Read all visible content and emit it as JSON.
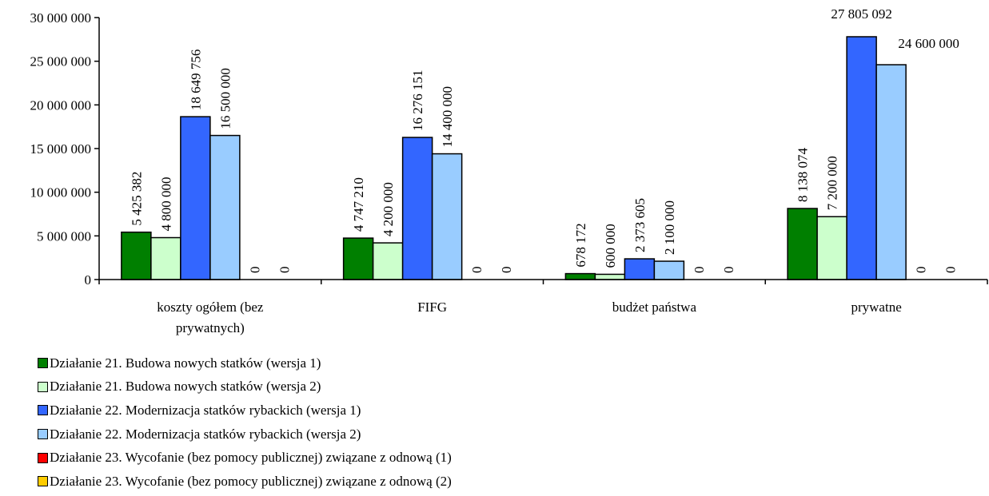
{
  "chart_data": {
    "type": "bar",
    "categories": [
      "koszty ogółem (bez prywatnych)",
      "FIFG",
      "budżet państwa",
      "prywatne"
    ],
    "category_lines": [
      [
        "koszty ogółem (bez",
        "prywatnych)"
      ],
      [
        "FIFG"
      ],
      [
        "budżet państwa"
      ],
      [
        "prywatne"
      ]
    ],
    "series": [
      {
        "name": "Działanie 21. Budowa nowych statków (wersja 1)",
        "color": "#007f00",
        "values": [
          5425382,
          4747210,
          678172,
          8138074
        ],
        "labels": [
          "5 425 382",
          "4 747 210",
          "678 172",
          "8 138 074"
        ]
      },
      {
        "name": "Działanie 21. Budowa nowych statków (wersja 2)",
        "color": "#ccffcc",
        "values": [
          4800000,
          4200000,
          600000,
          7200000
        ],
        "labels": [
          "4 800 000",
          "4 200 000",
          "600 000",
          "7 200 000"
        ]
      },
      {
        "name": "Działanie 22. Modernizacja statków rybackich (wersja 1)",
        "color": "#3366ff",
        "values": [
          18649756,
          16276151,
          2373605,
          27805092
        ],
        "labels": [
          "18 649 756",
          "16 276 151",
          "2 373 605",
          "27 805 092"
        ]
      },
      {
        "name": "Działanie 22. Modernizacja statków rybackich (wersja 2)",
        "color": "#99ccff",
        "values": [
          16500000,
          14400000,
          2100000,
          24600000
        ],
        "labels": [
          "16 500 000",
          "14 400 000",
          "2 100 000",
          "24 600 000"
        ]
      },
      {
        "name": "Działanie 23. Wycofanie (bez pomocy publicznej) związane z odnową (1)",
        "color": "#ff0000",
        "values": [
          0,
          0,
          0,
          0
        ],
        "labels": [
          "0",
          "0",
          "0",
          "0"
        ]
      },
      {
        "name": "Działanie 23. Wycofanie (bez pomocy publicznej) związane z odnową (2)",
        "color": "#ffcc00",
        "values": [
          0,
          0,
          0,
          0
        ],
        "labels": [
          "0",
          "0",
          "0",
          "0"
        ]
      }
    ],
    "ylim": [
      0,
      30000000
    ],
    "yticks": [
      0,
      5000000,
      10000000,
      15000000,
      20000000,
      25000000,
      30000000
    ],
    "ytick_labels": [
      "0",
      "5 000 000",
      "10 000 000",
      "15 000 000",
      "20 000 000",
      "25 000 000",
      "30 000 000"
    ],
    "title": "",
    "xlabel": "",
    "ylabel": "",
    "grid": false,
    "legend_position": "bottom-left"
  }
}
